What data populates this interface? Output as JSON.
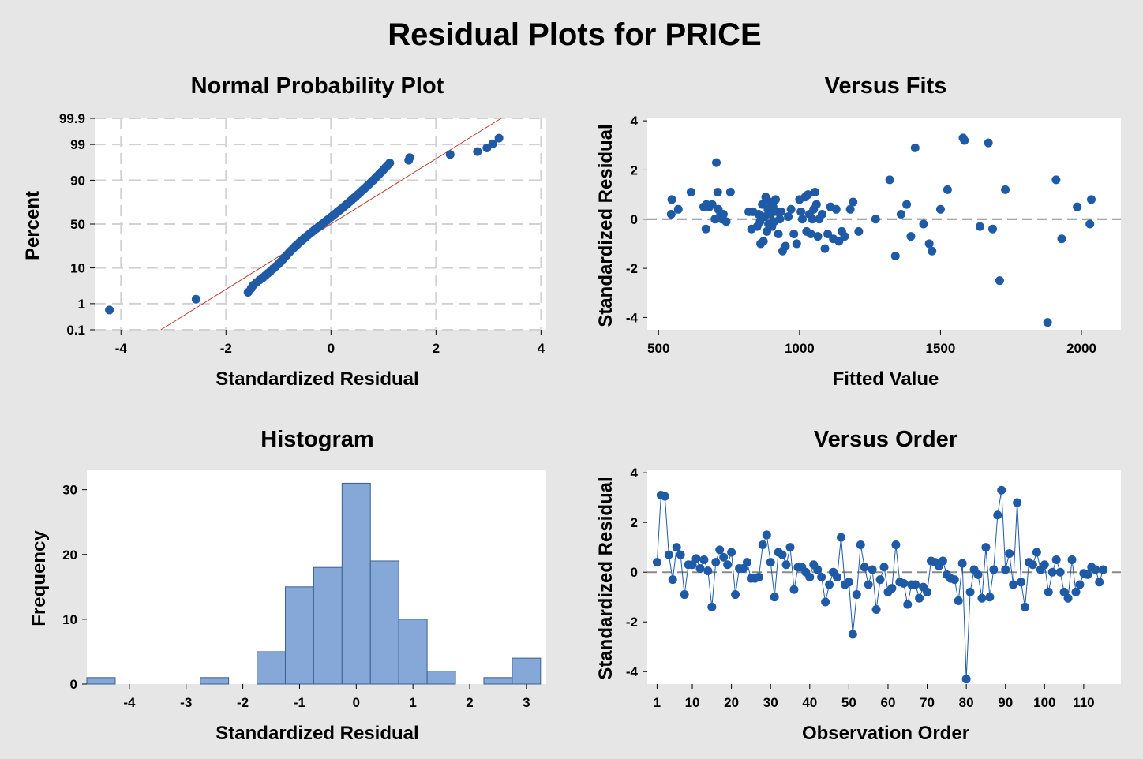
{
  "title": "Residual Plots for PRICE",
  "colors": {
    "background": "#e6e6e6",
    "point": "#1f5aa6",
    "bar": "#86a8d8",
    "bar_edge": "#3b5f8f",
    "fit_line": "#c0392b",
    "ref_line": "#8a8a8a"
  },
  "chart_data": [
    {
      "type": "scatter",
      "title": "Normal Probability Plot",
      "xlabel": "Standardized Residual",
      "ylabel": "Percent",
      "xlim": [
        -4.5,
        4.1
      ],
      "xticks": [
        -4,
        -2,
        0,
        2,
        4
      ],
      "yscale": "probability",
      "yticks": [
        "0.1",
        "1",
        "10",
        "50",
        "90",
        "99",
        "99.9"
      ],
      "grid": true,
      "fit_line": {
        "x": [
          -3.24,
          3.24
        ],
        "percent": [
          0.1,
          99.9
        ]
      },
      "points": {
        "x": [
          -4.22,
          -2.57,
          -1.58,
          -1.52,
          -1.48,
          -1.42,
          -1.36,
          -1.3,
          -1.25,
          -1.2,
          -1.15,
          -1.1,
          -1.05,
          -1.0,
          -0.96,
          -0.92,
          -0.88,
          -0.84,
          -0.8,
          -0.76,
          -0.72,
          -0.68,
          -0.64,
          -0.6,
          -0.56,
          -0.52,
          -0.48,
          -0.44,
          -0.4,
          -0.36,
          -0.32,
          -0.28,
          -0.24,
          -0.2,
          -0.16,
          -0.12,
          -0.08,
          -0.04,
          0.0,
          0.04,
          0.08,
          0.12,
          0.16,
          0.2,
          0.24,
          0.28,
          0.32,
          0.36,
          0.4,
          0.44,
          0.48,
          0.52,
          0.56,
          0.6,
          0.64,
          0.68,
          0.72,
          0.76,
          0.8,
          0.84,
          0.88,
          0.92,
          0.96,
          1.0,
          1.04,
          1.08,
          1.12,
          1.48,
          1.5,
          2.27,
          2.79,
          2.97,
          3.08,
          3.2
        ],
        "percent": [
          0.6,
          1.4,
          2.3,
          3.0,
          3.7,
          4.4,
          5.1,
          5.8,
          6.6,
          7.5,
          8.5,
          9.6,
          10.8,
          12.1,
          13.5,
          15.0,
          16.6,
          18.3,
          20.1,
          21.9,
          23.8,
          25.7,
          27.6,
          29.5,
          31.4,
          33.3,
          35.2,
          37.1,
          39.0,
          40.9,
          42.8,
          44.7,
          46.6,
          48.5,
          50.4,
          52.3,
          54.2,
          56.1,
          58.0,
          59.9,
          61.8,
          63.7,
          65.6,
          67.4,
          69.2,
          71.0,
          72.8,
          74.5,
          76.2,
          77.8,
          79.4,
          80.9,
          82.4,
          83.8,
          85.1,
          86.4,
          87.6,
          88.8,
          89.9,
          90.9,
          91.9,
          92.8,
          93.6,
          94.4,
          95.1,
          95.7,
          96.3,
          96.9,
          97.4,
          97.9,
          98.3,
          98.7,
          99.05,
          99.4
        ]
      }
    },
    {
      "type": "scatter",
      "title": "Versus Fits",
      "xlabel": "Fitted Value",
      "ylabel": "Standardized Residual",
      "xlim": [
        460,
        2140
      ],
      "ylim": [
        -4.5,
        4.1
      ],
      "xticks": [
        500,
        1000,
        1500,
        2000
      ],
      "yticks": [
        -4,
        -2,
        0,
        2,
        4
      ],
      "reference_line": 0,
      "points": {
        "x": [
          545,
          547,
          570,
          615,
          660,
          668,
          670,
          680,
          690,
          700,
          705,
          710,
          712,
          720,
          725,
          730,
          740,
          755,
          820,
          830,
          835,
          850,
          855,
          860,
          862,
          868,
          872,
          876,
          880,
          884,
          888,
          890,
          895,
          898,
          902,
          906,
          910,
          915,
          920,
          925,
          930,
          935,
          940,
          950,
          960,
          970,
          980,
          990,
          1000,
          1005,
          1010,
          1020,
          1025,
          1030,
          1035,
          1040,
          1045,
          1050,
          1055,
          1060,
          1065,
          1070,
          1080,
          1090,
          1100,
          1110,
          1120,
          1130,
          1140,
          1150,
          1160,
          1180,
          1190,
          1210,
          1270,
          1320,
          1340,
          1360,
          1380,
          1395,
          1410,
          1440,
          1460,
          1470,
          1500,
          1525,
          1580,
          1585,
          1640,
          1670,
          1685,
          1710,
          1730,
          1880,
          1910,
          1930,
          1985,
          2030,
          2035
        ],
        "y": [
          0.2,
          0.8,
          0.4,
          1.1,
          0.5,
          -0.4,
          0.6,
          0.5,
          0.6,
          0.0,
          2.3,
          1.1,
          0.4,
          0.2,
          0.0,
          0.2,
          -0.1,
          1.1,
          0.3,
          -0.4,
          0.3,
          -0.3,
          0.2,
          -0.1,
          -1.0,
          0.6,
          -0.9,
          0.1,
          0.9,
          -0.5,
          0.4,
          -0.2,
          0.7,
          0.2,
          -0.3,
          0.5,
          -0.1,
          0.8,
          0.3,
          -0.6,
          0.0,
          0.3,
          -1.3,
          -1.1,
          0.1,
          0.4,
          -0.6,
          -1.0,
          0.8,
          0.3,
          0.0,
          0.9,
          -0.5,
          1.0,
          0.2,
          -0.6,
          0.0,
          0.4,
          1.1,
          0.6,
          -0.7,
          0.0,
          0.2,
          -1.2,
          -0.6,
          0.5,
          -0.8,
          0.4,
          -0.9,
          -0.5,
          -0.7,
          0.4,
          0.7,
          -0.5,
          0.0,
          1.6,
          -1.5,
          0.2,
          0.6,
          -0.7,
          2.9,
          -0.2,
          -1.0,
          -1.3,
          0.4,
          1.2,
          3.3,
          3.2,
          -0.3,
          3.1,
          -0.4,
          -2.5,
          1.2,
          -4.2,
          1.6,
          -0.8,
          0.5,
          -0.2,
          0.8
        ]
      }
    },
    {
      "type": "bar",
      "title": "Histogram",
      "xlabel": "Standardized Residual",
      "ylabel": "Frequency",
      "xlim": [
        -4.75,
        3.35
      ],
      "ylim": [
        0,
        33
      ],
      "xticks": [
        -4,
        -3,
        -2,
        -1,
        0,
        1,
        2,
        3
      ],
      "yticks": [
        0,
        10,
        20,
        30
      ],
      "bin_width": 0.5,
      "bin_starts": [
        -4.75,
        -4.25,
        -3.75,
        -3.25,
        -2.75,
        -2.25,
        -1.75,
        -1.25,
        -0.75,
        -0.25,
        0.25,
        0.75,
        1.25,
        1.75,
        2.25,
        2.75
      ],
      "values": [
        1,
        0,
        0,
        0,
        1,
        0,
        5,
        15,
        18,
        31,
        19,
        10,
        2,
        0,
        1,
        4
      ]
    },
    {
      "type": "line",
      "title": "Versus Order",
      "xlabel": "Observation Order",
      "ylabel": "Standardized Residual",
      "xlim": [
        -1.5,
        119.5
      ],
      "ylim": [
        -4.5,
        4.1
      ],
      "xticks": [
        1,
        10,
        20,
        30,
        40,
        50,
        60,
        70,
        80,
        90,
        100,
        110
      ],
      "yticks": [
        -4,
        -2,
        0,
        2,
        4
      ],
      "reference_line": 0,
      "markers": true,
      "y": [
        0.4,
        3.1,
        3.05,
        0.7,
        -0.3,
        1.0,
        0.7,
        -0.9,
        0.3,
        0.3,
        0.55,
        0.15,
        0.5,
        0.05,
        -1.4,
        0.4,
        0.9,
        0.6,
        0.3,
        0.8,
        -0.9,
        0.15,
        0.15,
        0.4,
        -0.25,
        -0.25,
        -0.2,
        1.1,
        1.5,
        0.4,
        -1.0,
        0.8,
        0.7,
        0.3,
        1.0,
        -0.7,
        0.2,
        0.2,
        0.0,
        -0.2,
        0.3,
        0.1,
        -0.2,
        -1.2,
        -0.5,
        0.0,
        -0.2,
        1.4,
        -0.5,
        -0.4,
        -2.5,
        -0.9,
        1.1,
        0.2,
        -0.5,
        0.1,
        -1.5,
        -0.3,
        0.2,
        -0.8,
        -0.65,
        1.1,
        -0.4,
        -0.45,
        -1.3,
        -0.5,
        -0.5,
        -1.05,
        -0.6,
        -0.8,
        0.45,
        0.4,
        0.25,
        0.45,
        -0.1,
        -0.25,
        -0.3,
        -1.15,
        0.35,
        -4.3,
        -0.8,
        0.1,
        -0.1,
        -1.05,
        1.0,
        -1.0,
        0.1,
        2.3,
        3.3,
        0.1,
        0.75,
        -0.5,
        2.8,
        -0.4,
        -1.4,
        0.4,
        0.3,
        0.8,
        0.1,
        0.3,
        -0.8,
        0.0,
        0.5,
        0.0,
        -0.8,
        -1.05,
        0.5,
        -0.8,
        -0.5,
        -0.05,
        -0.1,
        0.2,
        0.1,
        -0.4,
        0.1
      ]
    }
  ]
}
